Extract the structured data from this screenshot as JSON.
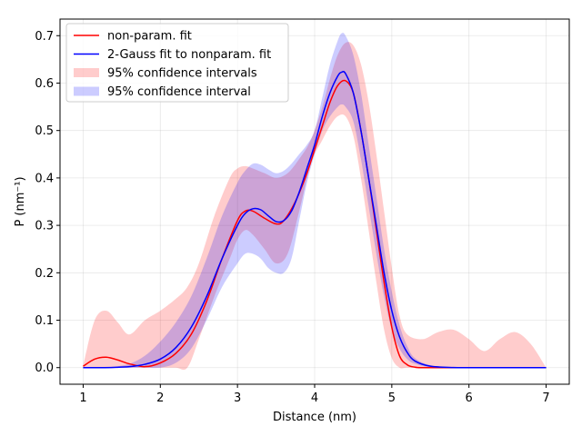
{
  "chart_data": {
    "type": "line",
    "title": "",
    "xlabel": "Distance (nm)",
    "ylabel": "P (nm⁻¹)",
    "xlim": [
      0.7,
      7.3
    ],
    "ylim": [
      -0.035,
      0.735
    ],
    "xticks": [
      1,
      2,
      3,
      4,
      5,
      6,
      7
    ],
    "yticks": [
      0.0,
      0.1,
      0.2,
      0.3,
      0.4,
      0.5,
      0.6,
      0.7
    ],
    "xtick_labels": [
      "1",
      "2",
      "3",
      "4",
      "5",
      "6",
      "7"
    ],
    "ytick_labels": [
      "0.0",
      "0.1",
      "0.2",
      "0.3",
      "0.4",
      "0.5",
      "0.6",
      "0.7"
    ],
    "grid": true,
    "legend_position": "upper-left",
    "series": [
      {
        "name": "non-param. fit",
        "kind": "line",
        "color": "#ff0000",
        "x": [
          1.0,
          1.15,
          1.3,
          1.45,
          1.6,
          1.8,
          2.0,
          2.2,
          2.4,
          2.6,
          2.8,
          3.0,
          3.1,
          3.2,
          3.35,
          3.5,
          3.6,
          3.75,
          3.9,
          4.0,
          4.1,
          4.2,
          4.3,
          4.4,
          4.5,
          4.6,
          4.7,
          4.8,
          4.9,
          5.0,
          5.1,
          5.2,
          5.3,
          5.4,
          5.6,
          6.0,
          7.0
        ],
        "y": [
          0.003,
          0.018,
          0.022,
          0.016,
          0.008,
          0.002,
          0.01,
          0.03,
          0.07,
          0.14,
          0.23,
          0.31,
          0.33,
          0.33,
          0.315,
          0.303,
          0.31,
          0.35,
          0.41,
          0.46,
          0.51,
          0.56,
          0.595,
          0.605,
          0.58,
          0.5,
          0.4,
          0.29,
          0.18,
          0.085,
          0.025,
          0.006,
          0.001,
          0.0,
          0.0,
          0.0,
          0.0
        ]
      },
      {
        "name": "2-Gauss fit to nonparam. fit",
        "kind": "line",
        "color": "#0000ff",
        "x": [
          1.0,
          1.2,
          1.4,
          1.6,
          1.8,
          2.0,
          2.2,
          2.4,
          2.6,
          2.8,
          3.0,
          3.1,
          3.2,
          3.3,
          3.4,
          3.5,
          3.6,
          3.7,
          3.8,
          3.9,
          4.0,
          4.1,
          4.2,
          4.3,
          4.35,
          4.4,
          4.5,
          4.6,
          4.7,
          4.8,
          4.9,
          5.0,
          5.1,
          5.2,
          5.3,
          5.5,
          5.8,
          6.2,
          7.0
        ],
        "y": [
          0.0,
          0.0,
          0.0005,
          0.002,
          0.007,
          0.018,
          0.042,
          0.085,
          0.15,
          0.23,
          0.3,
          0.325,
          0.335,
          0.333,
          0.32,
          0.308,
          0.31,
          0.33,
          0.37,
          0.42,
          0.47,
          0.53,
          0.58,
          0.615,
          0.623,
          0.62,
          0.58,
          0.5,
          0.4,
          0.3,
          0.2,
          0.12,
          0.065,
          0.032,
          0.014,
          0.003,
          0.0003,
          0.0,
          0.0
        ]
      },
      {
        "name": "95% confidence intervals",
        "kind": "band",
        "color": "#ff0000",
        "opacity": 0.2,
        "x": [
          1.0,
          1.15,
          1.3,
          1.45,
          1.6,
          1.8,
          2.0,
          2.2,
          2.35,
          2.5,
          2.7,
          2.9,
          3.0,
          3.1,
          3.2,
          3.35,
          3.5,
          3.65,
          3.8,
          3.95,
          4.1,
          4.2,
          4.3,
          4.4,
          4.5,
          4.6,
          4.7,
          4.8,
          4.9,
          5.0,
          5.1,
          5.2,
          5.4,
          5.6,
          5.8,
          6.0,
          6.2,
          6.4,
          6.6,
          6.8,
          7.0
        ],
        "upper": [
          0.005,
          0.1,
          0.12,
          0.095,
          0.07,
          0.1,
          0.12,
          0.145,
          0.17,
          0.22,
          0.32,
          0.4,
          0.42,
          0.425,
          0.42,
          0.41,
          0.4,
          0.41,
          0.44,
          0.48,
          0.55,
          0.61,
          0.66,
          0.685,
          0.68,
          0.64,
          0.56,
          0.45,
          0.33,
          0.21,
          0.11,
          0.07,
          0.06,
          0.075,
          0.08,
          0.06,
          0.035,
          0.06,
          0.075,
          0.05,
          0.0
        ],
        "lower": [
          0.0,
          0.0,
          0.0,
          0.0,
          0.0,
          0.0,
          0.0,
          0.0,
          0.0,
          0.06,
          0.15,
          0.23,
          0.27,
          0.29,
          0.28,
          0.25,
          0.22,
          0.24,
          0.33,
          0.43,
          0.48,
          0.51,
          0.53,
          0.53,
          0.49,
          0.4,
          0.29,
          0.18,
          0.08,
          0.02,
          0.0,
          0.0,
          0.0,
          0.0,
          0.0,
          0.0,
          0.0,
          0.0,
          0.0,
          0.0,
          0.0
        ]
      },
      {
        "name": "95% confidence interval",
        "kind": "band",
        "color": "#0000ff",
        "opacity": 0.2,
        "x": [
          1.0,
          1.2,
          1.4,
          1.6,
          1.8,
          2.0,
          2.2,
          2.4,
          2.6,
          2.8,
          3.0,
          3.1,
          3.2,
          3.3,
          3.4,
          3.5,
          3.6,
          3.7,
          3.8,
          3.9,
          4.0,
          4.1,
          4.2,
          4.3,
          4.35,
          4.4,
          4.5,
          4.6,
          4.7,
          4.8,
          4.9,
          5.0,
          5.1,
          5.2,
          5.3,
          5.5,
          5.8,
          6.2,
          7.0
        ],
        "upper": [
          0.0,
          0.0,
          0.002,
          0.008,
          0.025,
          0.055,
          0.095,
          0.15,
          0.23,
          0.32,
          0.39,
          0.415,
          0.43,
          0.428,
          0.418,
          0.41,
          0.415,
          0.43,
          0.45,
          0.47,
          0.5,
          0.57,
          0.64,
          0.69,
          0.705,
          0.7,
          0.66,
          0.58,
          0.47,
          0.36,
          0.25,
          0.16,
          0.09,
          0.045,
          0.02,
          0.005,
          0.001,
          0.0,
          0.0
        ],
        "lower": [
          0.0,
          0.0,
          0.0,
          0.0,
          0.0,
          0.0,
          0.01,
          0.04,
          0.1,
          0.17,
          0.22,
          0.24,
          0.24,
          0.23,
          0.21,
          0.2,
          0.2,
          0.23,
          0.31,
          0.39,
          0.45,
          0.5,
          0.53,
          0.55,
          0.555,
          0.55,
          0.52,
          0.44,
          0.34,
          0.24,
          0.15,
          0.08,
          0.04,
          0.018,
          0.008,
          0.001,
          0.0,
          0.0,
          0.0
        ]
      }
    ],
    "legend": [
      {
        "label": "non-param. fit",
        "kind": "line",
        "color": "#ff0000"
      },
      {
        "label": "2-Gauss fit to nonparam. fit",
        "kind": "line",
        "color": "#0000ff"
      },
      {
        "label": "95% confidence intervals",
        "kind": "patch",
        "color": "#ff0000"
      },
      {
        "label": "95% confidence interval",
        "kind": "patch",
        "color": "#0000ff"
      }
    ]
  }
}
